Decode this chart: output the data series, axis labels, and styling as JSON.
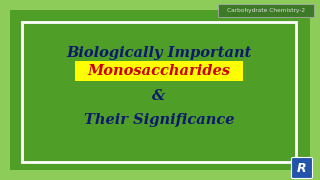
{
  "bg_light_green": "#8ecc5a",
  "bg_dark_green": "#4e9e28",
  "box_bg_color": "#4e9e28",
  "box_border_color": "#ffffff",
  "line1_text": "Biologically Important",
  "line2_text": "Monosaccharides",
  "line3_text": "&",
  "line4_text": "Their Significance",
  "line1_color": "#0d1a6b",
  "line2_color": "#cc0000",
  "line2_bg_color": "#ffff00",
  "line3_color": "#0d1a6b",
  "line4_color": "#0d1a6b",
  "watermark_text": "Carbohydrate Chemistry-2",
  "watermark_bg": "#3d7a25",
  "watermark_border": "#aaaaaa",
  "watermark_text_color": "#dddddd",
  "logo_bg": "#2255aa",
  "logo_text": "R",
  "logo_text_color": "#ffffff",
  "figsize": [
    3.2,
    1.8
  ],
  "dpi": 100
}
